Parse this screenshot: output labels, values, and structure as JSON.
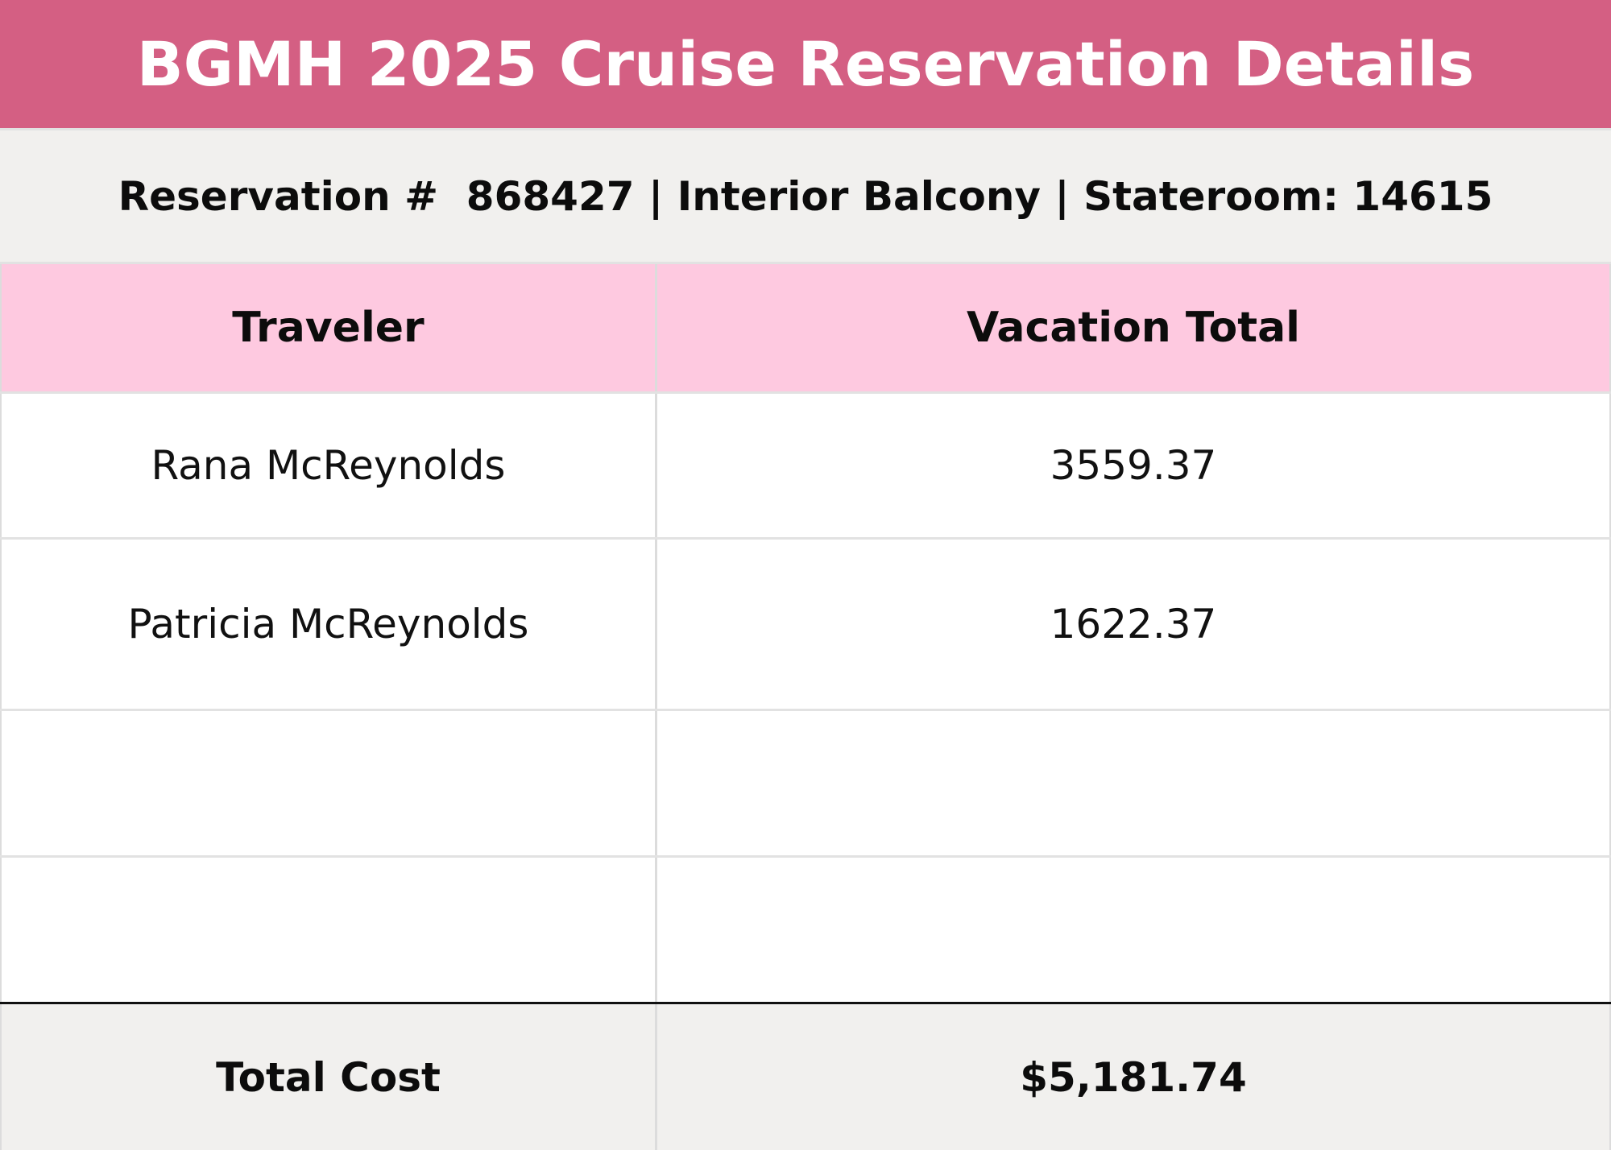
{
  "title": "BGMH 2025 Cruise Reservation Details",
  "subtitle": "Reservation #  868427 | Interior Balcony | Stateroom: 14615",
  "table": {
    "headers": [
      "Traveler",
      "Vacation Total"
    ],
    "rows": [
      {
        "traveler": "Rana McReynolds",
        "total": "3559.37"
      },
      {
        "traveler": "Patricia McReynolds",
        "total": "1622.37"
      },
      {
        "traveler": "",
        "total": ""
      },
      {
        "traveler": "",
        "total": ""
      }
    ],
    "footer": {
      "label": "Total Cost",
      "value": "$5,181.74"
    }
  },
  "colors": {
    "title_background": "#d45f83",
    "subtitle_background": "#f1f0ee",
    "header_background": "#fec9e0",
    "footer_background": "#f1f0ee"
  }
}
